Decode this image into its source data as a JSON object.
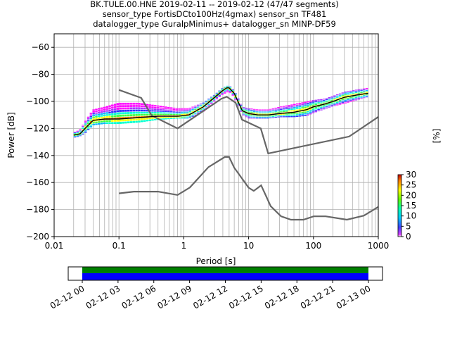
{
  "title_lines": [
    "BK.TULE.00.HNE   2019-02-11 -- 2019-02-12  (47/47 segments)",
    "sensor_type FortisDCto100Hz(4gmax) sensor_sn TF481",
    "datalogger_type GuralpMinimus+ datalogger_sn MINP-DF59"
  ],
  "chart_data": {
    "type": "heatmap",
    "xlabel": "Period [s]",
    "ylabel": "Power [dB]",
    "xscale": "log",
    "xlim": [
      0.01,
      1000
    ],
    "ylim": [
      -200,
      -50
    ],
    "grid": true,
    "x_ticks": [
      {
        "value": 0.01,
        "label": "0.01"
      },
      {
        "value": 0.1,
        "label": "0.1"
      },
      {
        "value": 1,
        "label": "1"
      },
      {
        "value": 10,
        "label": "10"
      },
      {
        "value": 100,
        "label": "100"
      },
      {
        "value": 1000,
        "label": "1000"
      }
    ],
    "y_ticks": [
      -60,
      -80,
      -100,
      -120,
      -140,
      -160,
      -180,
      -200
    ],
    "noise_model_high": {
      "x": [
        0.1,
        0.22,
        0.32,
        0.8,
        3.8,
        4.6,
        6.3,
        7.9,
        15.4,
        20,
        354.8,
        1000
      ],
      "y": [
        -91.5,
        -97.4,
        -110.5,
        -120,
        -98,
        -96.5,
        -101,
        -113.5,
        -120,
        -138.5,
        -126,
        -111.5
      ]
    },
    "noise_model_low": {
      "x": [
        0.1,
        0.17,
        0.4,
        0.8,
        1.24,
        2.4,
        4.3,
        5,
        6,
        10,
        12,
        15.6,
        21.9,
        31.6,
        45,
        70,
        101,
        154,
        328,
        600,
        1000
      ],
      "y": [
        -168,
        -166.7,
        -166.7,
        -169.2,
        -163.7,
        -148.6,
        -141.1,
        -141.1,
        -149,
        -163.8,
        -166.2,
        -162.1,
        -177.5,
        -185,
        -187.5,
        -187.5,
        -185,
        -185,
        -187.5,
        -184.5,
        -178
      ]
    },
    "mode_curve": {
      "x": [
        0.02,
        0.025,
        0.03,
        0.04,
        0.06,
        0.1,
        0.2,
        0.4,
        0.8,
        1.2,
        2,
        3,
        4,
        4.6,
        5,
        6,
        7,
        8,
        10,
        14,
        20,
        30,
        50,
        80,
        100,
        150,
        200,
        300,
        500,
        700
      ],
      "y": [
        -125,
        -124,
        -120,
        -114,
        -113,
        -113,
        -112,
        -111,
        -111,
        -110,
        -104,
        -97,
        -92,
        -90,
        -90,
        -94,
        -101,
        -107,
        -109,
        -110,
        -110,
        -109,
        -108,
        -106,
        -104,
        -102,
        -100,
        -97,
        -95,
        -94
      ]
    },
    "pdf_bands": [
      {
        "x": [
          0.02,
          0.025,
          0.03,
          0.04,
          0.06,
          0.1,
          0.2,
          0.4,
          0.8,
          1.2,
          2,
          3,
          4,
          5,
          6,
          7,
          8,
          10,
          14,
          20,
          30,
          50,
          80,
          100,
          150,
          200,
          300,
          500,
          700
        ],
        "upper": [
          -123,
          -121,
          -115,
          -106,
          -104,
          -101,
          -101,
          -103,
          -105,
          -105,
          -101,
          -95,
          -90,
          -88,
          -92,
          -98,
          -104,
          -105,
          -106,
          -106,
          -104,
          -102,
          -100,
          -99,
          -98,
          -96,
          -93,
          -91,
          -90
        ],
        "lower": [
          -127,
          -126,
          -124,
          -118,
          -117,
          -117,
          -116,
          -114,
          -113,
          -113,
          -108,
          -100,
          -95,
          -93,
          -97,
          -104,
          -110,
          -113,
          -113,
          -113,
          -112,
          -112,
          -111,
          -109,
          -106,
          -104,
          -102,
          -99,
          -97
        ]
      }
    ],
    "colorbar": {
      "label": "[%]",
      "range": [
        0,
        30
      ],
      "ticks": [
        0,
        5,
        10,
        15,
        20,
        25,
        30
      ]
    }
  },
  "time_axis": {
    "labels": [
      "02-12 00",
      "02-12 03",
      "02-12 06",
      "02-12 09",
      "02-12 12",
      "02-12 15",
      "02-12 18",
      "02-12 21",
      "02-13 00"
    ],
    "coverage": [
      {
        "from": "02-12 00",
        "to": "02-13 00",
        "color": "#0000ff"
      }
    ],
    "gaps": [],
    "colors": {
      "data": "#0000ff",
      "gap_free": "#008000"
    }
  }
}
